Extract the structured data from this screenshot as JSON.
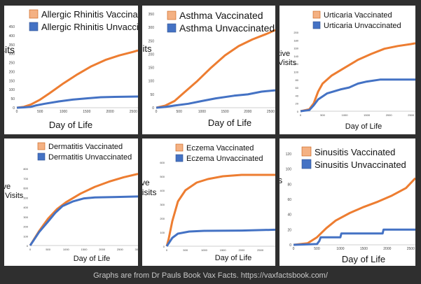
{
  "caption": "Graphs are from Dr Pauls Book Vax Facts. https://vaxfactsbook.com/",
  "colors": {
    "vaccinated": "#ed7d31",
    "unvaccinated": "#4472c4",
    "swatch_vaccinated": "#f4b183",
    "swatch_unvaccinated": "#4472c4"
  },
  "chart_data": [
    {
      "type": "line",
      "title": "",
      "xlabel": "Day of Life",
      "ylabel_fragment": "sits",
      "xlim": [
        0,
        2600
      ],
      "ylim": [
        0,
        450
      ],
      "xticks": [
        0,
        500,
        1000,
        1500,
        2000,
        2500
      ],
      "xtick_labels": [
        "0",
        "500",
        "1000",
        "1500",
        "2000",
        "2500"
      ],
      "yticks": [
        0,
        50,
        100,
        150,
        200,
        250,
        300,
        350,
        400,
        450
      ],
      "ytick_labels": [
        "0",
        "50",
        "100",
        "150",
        "200",
        "250",
        "300",
        "350",
        "400",
        "450"
      ],
      "series": [
        {
          "name": "Allergic Rhinitis Vaccinated",
          "x": [
            0,
            150,
            300,
            500,
            700,
            1000,
            1300,
            1600,
            1900,
            2200,
            2500,
            2600
          ],
          "values": [
            0,
            5,
            18,
            45,
            80,
            135,
            185,
            230,
            265,
            290,
            310,
            318
          ]
        },
        {
          "name": "Allergic Rhinitis Unvaccinated",
          "x": [
            0,
            150,
            300,
            400,
            600,
            900,
            1200,
            1500,
            1800,
            2100,
            2600
          ],
          "values": [
            0,
            2,
            5,
            12,
            22,
            35,
            45,
            52,
            58,
            60,
            62
          ]
        }
      ]
    },
    {
      "type": "line",
      "title": "",
      "xlabel": "Day of Life",
      "ylabel_fragment": "sits",
      "xlim": [
        0,
        2600
      ],
      "ylim": [
        0,
        350
      ],
      "xticks": [
        0,
        500,
        1000,
        1500,
        2000,
        2500
      ],
      "xtick_labels": [
        "0",
        "500",
        "1000",
        "1500",
        "2000",
        "2500"
      ],
      "yticks": [
        0,
        50,
        100,
        150,
        200,
        250,
        300,
        350
      ],
      "ytick_labels": [
        "0",
        "50",
        "100",
        "150",
        "200",
        "250",
        "300",
        "350"
      ],
      "series": [
        {
          "name": "Asthma Vaccinated",
          "x": [
            0,
            200,
            400,
            600,
            900,
            1200,
            1500,
            1800,
            2100,
            2400,
            2600
          ],
          "values": [
            0,
            8,
            25,
            55,
            100,
            150,
            195,
            230,
            255,
            275,
            290
          ]
        },
        {
          "name": "Asthma Unvaccinated",
          "x": [
            0,
            200,
            400,
            700,
            1000,
            1300,
            1700,
            2000,
            2300,
            2600
          ],
          "values": [
            0,
            3,
            8,
            15,
            25,
            35,
            45,
            50,
            60,
            65
          ]
        }
      ]
    },
    {
      "type": "line",
      "title": "",
      "xlabel": "Day of Life",
      "ylabel_fragment": "tive\nVisits",
      "xlim": [
        0,
        2600
      ],
      "ylim": [
        0,
        200
      ],
      "xticks": [
        0,
        500,
        1000,
        1500,
        2000,
        2500
      ],
      "xtick_labels": [
        "0",
        "500",
        "1000",
        "1500",
        "2000",
        "2500"
      ],
      "yticks": [
        0,
        20,
        40,
        60,
        80,
        100,
        120,
        140,
        160,
        180,
        200
      ],
      "ytick_labels": [
        "0",
        "20",
        "40",
        "60",
        "80",
        "100",
        "120",
        "140",
        "160",
        "180",
        "200"
      ],
      "series": [
        {
          "name": "Urticaria Vaccinated",
          "x": [
            0,
            200,
            300,
            400,
            500,
            700,
            1000,
            1300,
            1600,
            1900,
            2200,
            2500,
            2600
          ],
          "values": [
            0,
            5,
            20,
            50,
            70,
            90,
            110,
            130,
            145,
            158,
            165,
            170,
            172
          ]
        },
        {
          "name": "Urticaria Unvaccinated",
          "x": [
            0,
            200,
            300,
            400,
            600,
            900,
            1100,
            1300,
            1500,
            1800,
            2100,
            2600
          ],
          "values": [
            0,
            3,
            15,
            30,
            45,
            55,
            60,
            70,
            75,
            80,
            80,
            80
          ]
        }
      ]
    },
    {
      "type": "line",
      "title": "",
      "xlabel": "Day of Life",
      "ylabel_fragment": "tive\ne Visits",
      "xlim": [
        0,
        3000
      ],
      "ylim": [
        0,
        800
      ],
      "xticks": [
        0,
        500,
        1000,
        1500,
        2000,
        2500,
        3000
      ],
      "xtick_labels": [
        "0",
        "500",
        "1000",
        "1500",
        "2000",
        "2500",
        "3000"
      ],
      "yticks": [
        0,
        100,
        200,
        300,
        400,
        500,
        600,
        700,
        800
      ],
      "ytick_labels": [
        "0",
        "100",
        "200",
        "300",
        "400",
        "500",
        "600",
        "700",
        "800"
      ],
      "series": [
        {
          "name": "Dermatitis Vaccinated",
          "x": [
            0,
            100,
            250,
            500,
            750,
            1000,
            1400,
            1800,
            2200,
            2600,
            3000
          ],
          "values": [
            0,
            60,
            150,
            280,
            380,
            450,
            540,
            610,
            665,
            710,
            745
          ]
        },
        {
          "name": "Dermatitis Unvaccinated",
          "x": [
            0,
            100,
            250,
            500,
            700,
            900,
            1200,
            1500,
            1800,
            2400,
            3000
          ],
          "values": [
            0,
            55,
            140,
            250,
            340,
            410,
            460,
            490,
            500,
            505,
            510
          ]
        }
      ]
    },
    {
      "type": "line",
      "title": "",
      "xlabel": "Day of Life",
      "ylabel_fragment": "tive\nVisits",
      "xlim": [
        0,
        2900
      ],
      "ylim": [
        0,
        600
      ],
      "xticks": [
        0,
        500,
        1000,
        1500,
        2000,
        2500
      ],
      "xtick_labels": [
        "0",
        "500",
        "1000",
        "1500",
        "2000",
        "2500"
      ],
      "yticks": [
        0,
        100,
        200,
        300,
        400,
        500,
        600
      ],
      "ytick_labels": [
        "0",
        "100",
        "200",
        "300",
        "400",
        "500",
        "600"
      ],
      "series": [
        {
          "name": "Eczema Vaccinated",
          "x": [
            0,
            50,
            150,
            300,
            500,
            800,
            1100,
            1500,
            2000,
            2900
          ],
          "values": [
            0,
            50,
            180,
            320,
            400,
            455,
            480,
            500,
            510,
            510
          ]
        },
        {
          "name": "Eczema Unvaccinated",
          "x": [
            0,
            50,
            150,
            300,
            600,
            1000,
            2000,
            2900
          ],
          "values": [
            0,
            20,
            60,
            90,
            105,
            110,
            112,
            118
          ]
        }
      ]
    },
    {
      "type": "line",
      "title": "",
      "xlabel": "Day of Life",
      "ylabel_fragment": "ts",
      "xlim": [
        0,
        2600
      ],
      "ylim": [
        0,
        120
      ],
      "xticks": [
        0,
        500,
        1000,
        1500,
        2000,
        2500
      ],
      "xtick_labels": [
        "0",
        "500",
        "1000",
        "1500",
        "2000",
        "2500"
      ],
      "yticks": [
        0,
        20,
        40,
        60,
        80,
        100,
        120
      ],
      "ytick_labels": [
        "0",
        "20",
        "40",
        "60",
        "80",
        "100",
        "120"
      ],
      "series": [
        {
          "name": "Sinusitis Vaccinated",
          "x": [
            0,
            300,
            500,
            700,
            900,
            1200,
            1500,
            1800,
            2100,
            2400,
            2600
          ],
          "values": [
            0,
            2,
            10,
            22,
            32,
            42,
            50,
            57,
            65,
            75,
            88
          ]
        },
        {
          "name": "Sinusitis Unvaccinated",
          "x": [
            0,
            500,
            550,
            580,
            1000,
            1020,
            1900,
            1920,
            2600
          ],
          "values": [
            0,
            1,
            5,
            10,
            10,
            15,
            15,
            20,
            20
          ]
        }
      ]
    }
  ]
}
